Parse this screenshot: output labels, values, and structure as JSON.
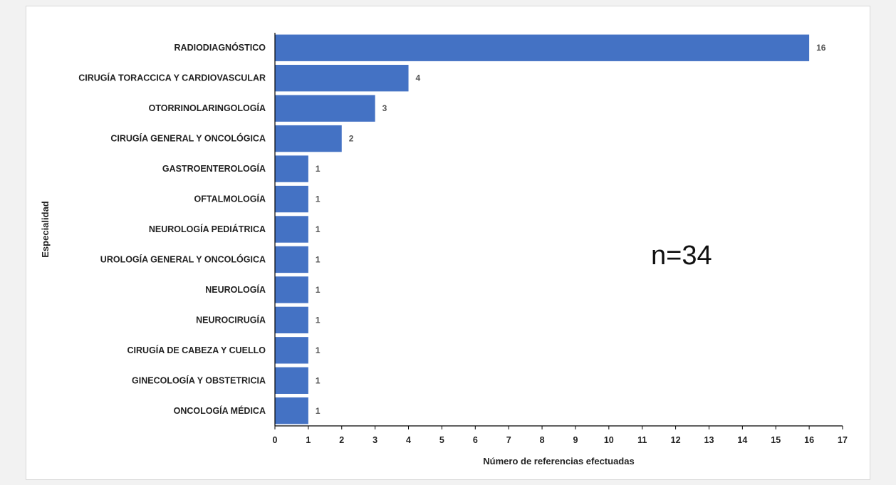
{
  "chart_data": {
    "type": "bar",
    "orientation": "horizontal",
    "categories": [
      "RADIODIAGNÓSTICO",
      "CIRUGÍA TORACCICA Y CARDIOVASCULAR",
      "OTORRINOLARINGOLOGÍA",
      "CIRUGÍA GENERAL Y ONCOLÓGICA",
      "GASTROENTEROLOGÍA",
      "OFTALMOLOGÍA",
      "NEUROLOGÍA PEDIÁTRICA",
      "UROLOGÍA GENERAL Y ONCOLÓGICA",
      "NEUROLOGÍA",
      "NEUROCIRUGÍA",
      "CIRUGÍA DE CABEZA Y CUELLO",
      "GINECOLOGÍA Y OBSTETRICIA",
      "ONCOLOGÍA MÉDICA"
    ],
    "values": [
      16,
      4,
      3,
      2,
      1,
      1,
      1,
      1,
      1,
      1,
      1,
      1,
      1
    ],
    "xlabel": "Número de referencias efectuadas",
    "ylabel": "Especialidad",
    "xlim": [
      0,
      17
    ],
    "xticks": [
      0,
      1,
      2,
      3,
      4,
      5,
      6,
      7,
      8,
      9,
      10,
      11,
      12,
      13,
      14,
      15,
      16,
      17
    ],
    "annotation": "n=34",
    "grid": false,
    "data_labels": true,
    "bar_color": "#4472c4"
  }
}
